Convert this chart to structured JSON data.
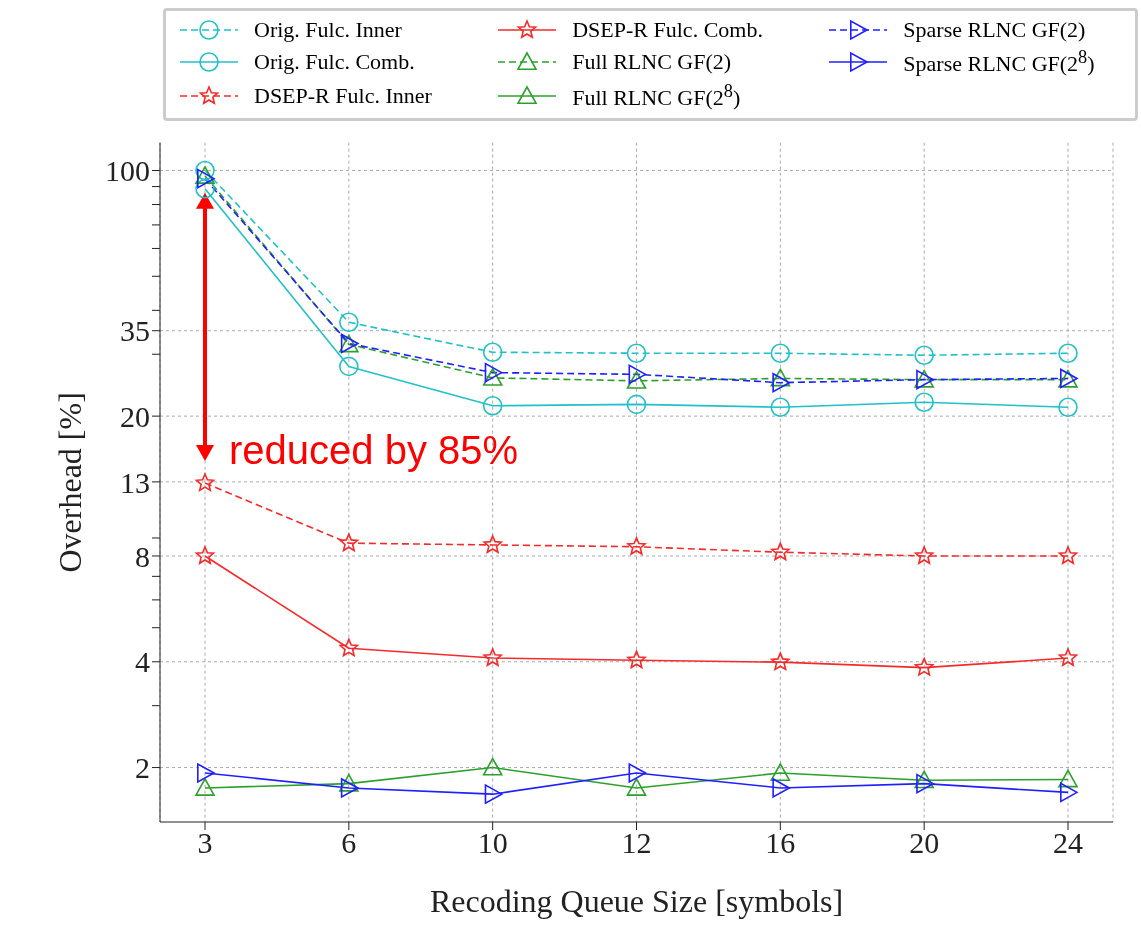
{
  "chart_data": {
    "type": "line",
    "xlabel": "Recoding Queue Size [symbols]",
    "ylabel": "Overhead [%]",
    "categories": [
      "3",
      "6",
      "10",
      "12",
      "16",
      "20",
      "24"
    ],
    "log": "y",
    "ylim": [
      1.4,
      120
    ],
    "yticks": [
      2,
      {
        "value": 3,
        "label": null
      },
      4,
      {
        "value": 5,
        "label": null
      },
      {
        "value": 6,
        "label": null
      },
      {
        "value": 7,
        "label": null
      },
      8,
      {
        "value": 9,
        "label": null
      },
      13,
      20,
      {
        "value": 30,
        "label": null
      },
      35,
      {
        "value": 40,
        "label": null
      },
      {
        "value": 50,
        "label": null
      },
      {
        "value": 60,
        "label": null
      },
      {
        "value": 70,
        "label": null
      },
      {
        "value": 80,
        "label": null
      },
      {
        "value": 90,
        "label": null
      },
      100
    ],
    "grid": true,
    "legend": "top",
    "annotations": [
      "reduced by 85%"
    ],
    "series": [
      {
        "name": "Orig. Fulc. Inner",
        "color": "#22c0c8",
        "marker": "circle",
        "line_style": "dashed",
        "values": [
          100,
          37,
          30.4,
          30.2,
          30.2,
          29.8,
          30.2
        ]
      },
      {
        "name": "Orig. Fulc. Comb.",
        "color": "#22c0c8",
        "marker": "circle",
        "line_style": "solid",
        "values": [
          88.7,
          27.7,
          21.4,
          21.6,
          21.2,
          21.9,
          21.2
        ]
      },
      {
        "name": "DSEP-R Fulc. Inner",
        "color": "#f52a2a",
        "marker": "star",
        "line_style": "dashed",
        "values": [
          12.9,
          8.7,
          8.6,
          8.5,
          8.2,
          8.0,
          8.0
        ]
      },
      {
        "name": "DSEP-R Fulc. Comb.",
        "color": "#f52a2a",
        "marker": "star",
        "line_style": "solid",
        "values": [
          8.0,
          4.37,
          4.1,
          4.04,
          3.99,
          3.85,
          4.1
        ]
      },
      {
        "name": "Full RLNC GF(2)",
        "color": "#2ca02c",
        "marker": "triangle",
        "line_style": "dashed",
        "values": [
          96.5,
          32,
          25.7,
          25.2,
          25.6,
          25.4,
          25.4
        ]
      },
      {
        "name": "Full RLNC GF(2$^{8}$)",
        "color": "#2ca02c",
        "marker": "triangle",
        "line_style": "solid",
        "values": [
          1.75,
          1.8,
          2.0,
          1.75,
          1.93,
          1.84,
          1.85
        ]
      },
      {
        "name": "Sparse RLNC GF(2)",
        "color": "#1f1fff",
        "marker": "triangle-right",
        "line_style": "dashed",
        "values": [
          94.8,
          32.2,
          26.6,
          26.3,
          24.9,
          25.4,
          25.6
        ]
      },
      {
        "name": "Sparse RLNC GF(2$^{8}$)",
        "color": "#1f1fff",
        "marker": "triangle-right",
        "line_style": "solid",
        "values": [
          1.93,
          1.75,
          1.68,
          1.93,
          1.75,
          1.8,
          1.7
        ]
      }
    ]
  }
}
